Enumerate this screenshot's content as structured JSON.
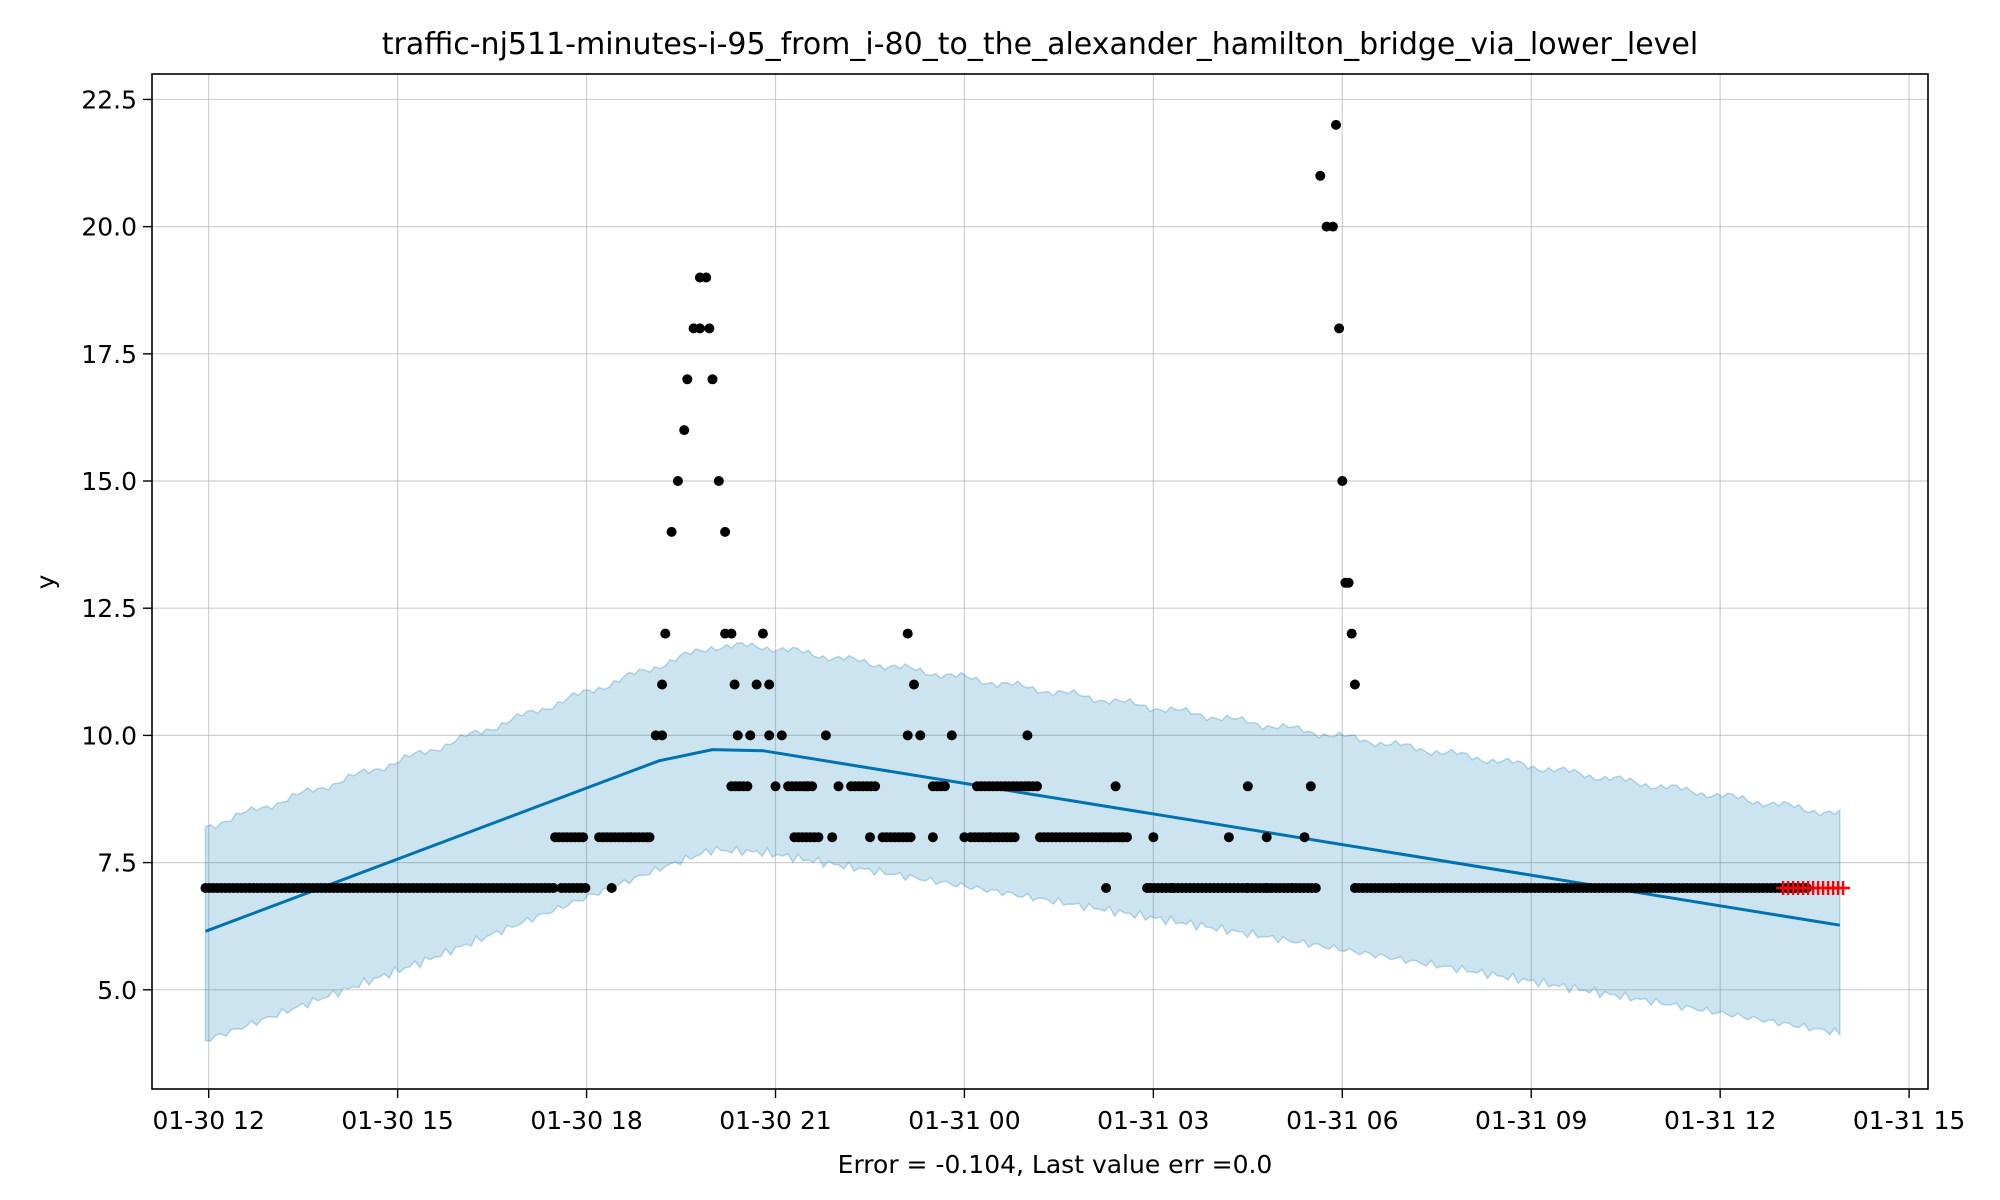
{
  "chart_data": {
    "type": "scatter",
    "title": "traffic-nj511-minutes-i-95_from_i-80_to_the_alexander_hamilton_bridge_via_lower_level",
    "xlabel": "Error = -0.104, Last value err =0.0",
    "ylabel": "y",
    "x_unit": "hours",
    "xlim": [
      -0.9,
      27.3
    ],
    "ylim": [
      3.05,
      23.0
    ],
    "grid": true,
    "x_ticks": [
      {
        "value": 0,
        "label": "01-30 12"
      },
      {
        "value": 3,
        "label": "01-30 15"
      },
      {
        "value": 6,
        "label": "01-30 18"
      },
      {
        "value": 9,
        "label": "01-30 21"
      },
      {
        "value": 12,
        "label": "01-31 00"
      },
      {
        "value": 15,
        "label": "01-31 03"
      },
      {
        "value": 18,
        "label": "01-31 06"
      },
      {
        "value": 21,
        "label": "01-31 09"
      },
      {
        "value": 24,
        "label": "01-31 12"
      },
      {
        "value": 27,
        "label": "01-31 15"
      }
    ],
    "y_ticks": [
      {
        "value": 5.0,
        "label": "5.0"
      },
      {
        "value": 7.5,
        "label": "7.5"
      },
      {
        "value": 10.0,
        "label": "10.0"
      },
      {
        "value": 12.5,
        "label": "12.5"
      },
      {
        "value": 15.0,
        "label": "15.0"
      },
      {
        "value": 17.5,
        "label": "17.5"
      },
      {
        "value": 20.0,
        "label": "20.0"
      },
      {
        "value": 22.5,
        "label": "22.5"
      }
    ],
    "forecast_line": {
      "color": "#0072B2",
      "points": [
        [
          -0.05,
          6.15
        ],
        [
          7.15,
          9.5
        ],
        [
          8.0,
          9.72
        ],
        [
          8.8,
          9.7
        ],
        [
          25.9,
          6.27
        ]
      ]
    },
    "uncertainty_band": {
      "color": "#0072B2",
      "opacity": 0.2,
      "upper": [
        [
          -0.05,
          8.2
        ],
        [
          3.5,
          9.7
        ],
        [
          7.2,
          11.4
        ],
        [
          8.0,
          11.75
        ],
        [
          8.8,
          11.75
        ],
        [
          25.9,
          8.45
        ]
      ],
      "lower": [
        [
          -0.05,
          4.0
        ],
        [
          3.5,
          5.6
        ],
        [
          7.2,
          7.4
        ],
        [
          8.0,
          7.75
        ],
        [
          8.8,
          7.7
        ],
        [
          25.9,
          4.15
        ]
      ]
    },
    "observed_points": {
      "color": "#000000",
      "segments": [
        {
          "x_start": -0.05,
          "x_end": 5.5,
          "y": 7.0
        },
        {
          "x_start": 5.6,
          "x_end": 6.0,
          "y": 7.0
        },
        {
          "x_start": 14.95,
          "x_end": 16.5,
          "y": 7.0
        },
        {
          "x_start": 16.5,
          "x_end": 17.6,
          "y": 7.0
        },
        {
          "x_start": 18.2,
          "x_end": 25.4,
          "y": 7.0
        },
        {
          "x_start": 5.5,
          "x_end": 6.0,
          "y": 8.0
        },
        {
          "x_start": 6.2,
          "x_end": 7.0,
          "y": 8.0
        },
        {
          "x_start": 8.3,
          "x_end": 8.6,
          "y": 9.0
        },
        {
          "x_start": 9.2,
          "x_end": 9.6,
          "y": 9.0
        },
        {
          "x_start": 9.3,
          "x_end": 9.7,
          "y": 8.0
        },
        {
          "x_start": 10.2,
          "x_end": 10.6,
          "y": 9.0
        },
        {
          "x_start": 10.7,
          "x_end": 11.2,
          "y": 8.0
        },
        {
          "x_start": 11.5,
          "x_end": 11.7,
          "y": 9.0
        },
        {
          "x_start": 12.1,
          "x_end": 12.8,
          "y": 8.0
        },
        {
          "x_start": 12.2,
          "x_end": 13.2,
          "y": 9.0
        },
        {
          "x_start": 13.2,
          "x_end": 14.3,
          "y": 8.0
        },
        {
          "x_start": 14.2,
          "x_end": 14.6,
          "y": 8.0
        }
      ],
      "points": [
        [
          6.4,
          7.0
        ],
        [
          6.7,
          8.0
        ],
        [
          7.0,
          8.0
        ],
        [
          7.1,
          10.0
        ],
        [
          7.2,
          10.0
        ],
        [
          7.2,
          11.0
        ],
        [
          7.25,
          12.0
        ],
        [
          7.35,
          14.0
        ],
        [
          7.45,
          15.0
        ],
        [
          7.55,
          16.0
        ],
        [
          7.6,
          17.0
        ],
        [
          7.7,
          18.0
        ],
        [
          7.8,
          18.0
        ],
        [
          7.8,
          19.0
        ],
        [
          7.9,
          19.0
        ],
        [
          7.95,
          18.0
        ],
        [
          8.0,
          17.0
        ],
        [
          8.1,
          15.0
        ],
        [
          8.2,
          14.0
        ],
        [
          8.2,
          12.0
        ],
        [
          8.3,
          12.0
        ],
        [
          8.35,
          11.0
        ],
        [
          8.4,
          10.0
        ],
        [
          8.6,
          10.0
        ],
        [
          8.7,
          11.0
        ],
        [
          8.8,
          12.0
        ],
        [
          8.9,
          11.0
        ],
        [
          8.9,
          10.0
        ],
        [
          9.1,
          10.0
        ],
        [
          9.0,
          9.0
        ],
        [
          9.5,
          9.0
        ],
        [
          9.8,
          10.0
        ],
        [
          9.9,
          8.0
        ],
        [
          10.0,
          9.0
        ],
        [
          10.5,
          8.0
        ],
        [
          11.1,
          12.0
        ],
        [
          11.2,
          11.0
        ],
        [
          11.1,
          10.0
        ],
        [
          11.3,
          10.0
        ],
        [
          11.5,
          8.0
        ],
        [
          11.8,
          10.0
        ],
        [
          12.0,
          8.0
        ],
        [
          12.4,
          8.0
        ],
        [
          13.0,
          10.0
        ],
        [
          13.0,
          9.0
        ],
        [
          14.25,
          7.0
        ],
        [
          14.4,
          9.0
        ],
        [
          14.5,
          8.0
        ],
        [
          15.0,
          8.0
        ],
        [
          14.9,
          7.0
        ],
        [
          15.3,
          7.0
        ],
        [
          16.2,
          8.0
        ],
        [
          16.8,
          8.0
        ],
        [
          16.5,
          9.0
        ],
        [
          16.8,
          7.0
        ],
        [
          17.2,
          7.0
        ],
        [
          17.5,
          9.0
        ],
        [
          17.4,
          8.0
        ],
        [
          17.65,
          21.0
        ],
        [
          17.75,
          20.0
        ],
        [
          17.85,
          20.0
        ],
        [
          17.9,
          22.0
        ],
        [
          17.95,
          18.0
        ],
        [
          18.0,
          15.0
        ],
        [
          18.05,
          13.0
        ],
        [
          18.1,
          13.0
        ],
        [
          18.15,
          12.0
        ],
        [
          18.2,
          11.0
        ]
      ]
    },
    "holdout_points": {
      "color": "#FF0000",
      "marker": "+",
      "x_start": 25.0,
      "x_end": 26.0,
      "y": 7.0
    }
  }
}
